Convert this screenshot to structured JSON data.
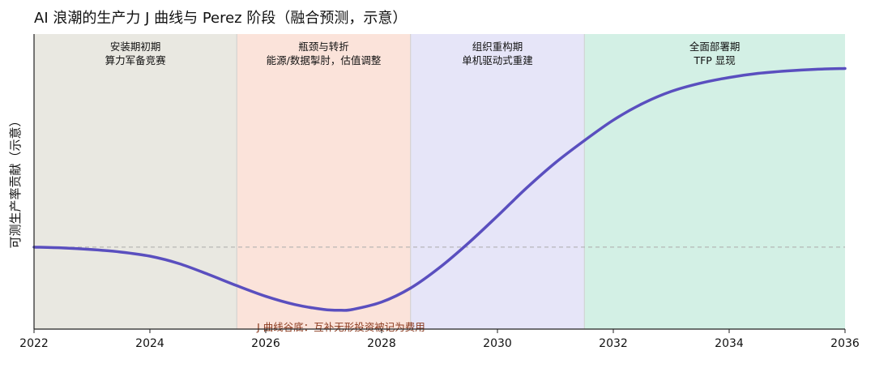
{
  "chart_data": {
    "type": "line",
    "title": "AI 浪潮的生产力 J 曲线与 Perez 阶段（融合预测，示意）",
    "xlabel": "",
    "ylabel": "可测生产率贡献（示意）",
    "xlim": [
      2022,
      2036
    ],
    "ylim": [
      -1.0,
      2.6
    ],
    "x_ticks": [
      "2022",
      "2024",
      "2026",
      "2028",
      "2030",
      "2032",
      "2034",
      "2036"
    ],
    "grid": false,
    "baseline": {
      "y": 0,
      "style": "dashed"
    },
    "phases": [
      {
        "start": 2022,
        "end": 2025.5,
        "label_line1": "安装期初期",
        "label_line2": "算力军备竞赛",
        "color": "#e9e8e1"
      },
      {
        "start": 2025.5,
        "end": 2028.5,
        "label_line1": "瓶颈与转折",
        "label_line2": "能源/数据掣肘，估值调整",
        "color": "#fbe3da"
      },
      {
        "start": 2028.5,
        "end": 2031.5,
        "label_line1": "组织重构期",
        "label_line2": "单机驱动式重建",
        "color": "#e6e5f8"
      },
      {
        "start": 2031.5,
        "end": 2036,
        "label_line1": "全面部署期",
        "label_line2": "TFP 显现",
        "color": "#d3f0e5"
      }
    ],
    "series": [
      {
        "color": "#5a4fbf",
        "x": [
          2022,
          2022.5,
          2023,
          2023.5,
          2024,
          2024.5,
          2025,
          2025.5,
          2026,
          2026.5,
          2027,
          2027.3,
          2027.5,
          2028,
          2028.5,
          2029,
          2029.5,
          2030,
          2030.5,
          2031,
          2031.5,
          2032,
          2032.5,
          2033,
          2033.5,
          2034,
          2034.5,
          2035,
          2035.5,
          2036
        ],
        "y": [
          0,
          -0.01,
          -0.03,
          -0.06,
          -0.11,
          -0.2,
          -0.33,
          -0.47,
          -0.6,
          -0.7,
          -0.76,
          -0.77,
          -0.76,
          -0.67,
          -0.5,
          -0.25,
          0.05,
          0.38,
          0.72,
          1.03,
          1.3,
          1.55,
          1.75,
          1.9,
          2.0,
          2.07,
          2.12,
          2.15,
          2.17,
          2.18
        ]
      }
    ],
    "annotation": {
      "text": "J 曲线谷底：互补无形投资被记为费用",
      "x": 2027.3,
      "y": -1.02,
      "color": "#8b3a1e"
    }
  }
}
